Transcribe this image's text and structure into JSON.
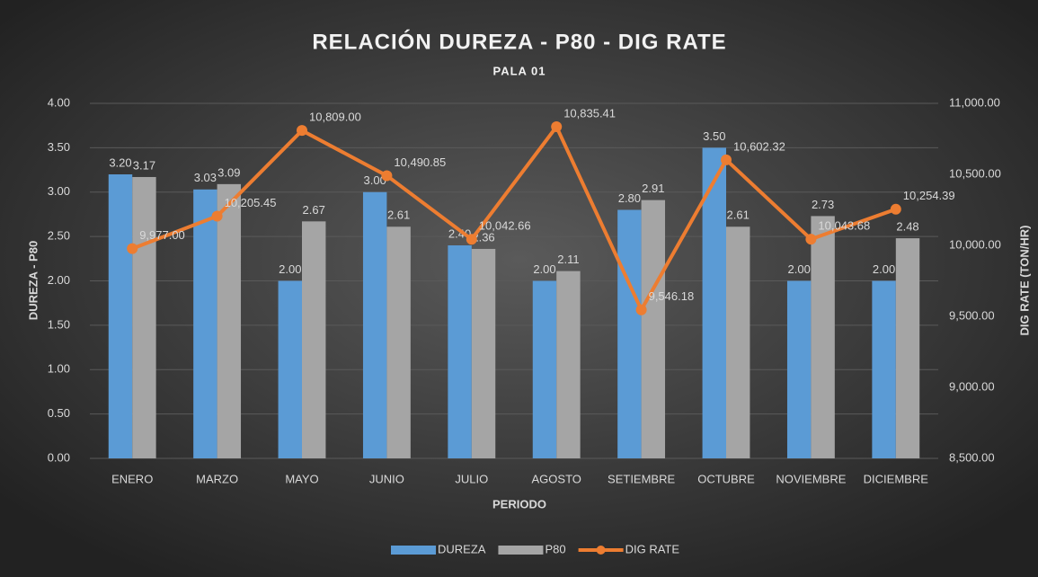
{
  "chart_data": {
    "type": "bar",
    "title": "RELACIÓN DUREZA - P80 - DIG RATE",
    "subtitle": "PALA 01",
    "x_label": "PERIODO",
    "y_label": "DUREZA - P80",
    "y2_label": "DIG RATE (TON/HR)",
    "categories": [
      "ENERO",
      "MARZO",
      "MAYO",
      "JUNIO",
      "JULIO",
      "AGOSTO",
      "SETIEMBRE",
      "OCTUBRE",
      "NOVIEMBRE",
      "DICIEMBRE"
    ],
    "series": [
      {
        "name": "DUREZA",
        "type": "bar",
        "color": "#5b9bd5",
        "values": [
          3.2,
          3.03,
          2.0,
          3.0,
          2.4,
          2.0,
          2.8,
          3.5,
          2.0,
          2.0
        ],
        "value_labels": [
          "3.20",
          "3.03",
          "2.00",
          "3.00",
          "2.40",
          "2.00",
          "2.80",
          "3.50",
          "2.00",
          "2.00"
        ]
      },
      {
        "name": "P80",
        "type": "bar",
        "color": "#a5a5a5",
        "values": [
          3.17,
          3.09,
          2.67,
          2.61,
          2.36,
          2.11,
          2.91,
          2.61,
          2.73,
          2.48
        ],
        "value_labels": [
          "3.17",
          "3.09",
          "2.67",
          "2.61",
          "2.36",
          "2.11",
          "2.91",
          "2.61",
          "2.73",
          "2.48"
        ]
      },
      {
        "name": "DIG RATE",
        "type": "line",
        "axis": "y2",
        "color": "#ed7d31",
        "values": [
          9977.0,
          10205.45,
          10809.0,
          10490.85,
          10042.66,
          10835.41,
          9546.18,
          10602.32,
          10043.68,
          10254.39
        ],
        "value_labels": [
          "9,977.00",
          "10,205.45",
          "10,809.00",
          "10,490.85",
          "10,042.66",
          "10,835.41",
          "9,546.18",
          "10,602.32",
          "10,043.68",
          "10,254.39"
        ]
      }
    ],
    "ylim": [
      0,
      4
    ],
    "yticks": [
      {
        "value": 0,
        "label": "0.00"
      },
      {
        "value": 0.5,
        "label": "0.50"
      },
      {
        "value": 1,
        "label": "1.00"
      },
      {
        "value": 1.5,
        "label": "1.50"
      },
      {
        "value": 2,
        "label": "2.00"
      },
      {
        "value": 2.5,
        "label": "2.50"
      },
      {
        "value": 3,
        "label": "3.00"
      },
      {
        "value": 3.5,
        "label": "3.50"
      },
      {
        "value": 4,
        "label": "4.00"
      }
    ],
    "y2lim": [
      8500,
      11000
    ],
    "y2ticks": [
      {
        "value": 8500,
        "label": "8,500.00"
      },
      {
        "value": 9000,
        "label": "9,000.00"
      },
      {
        "value": 9500,
        "label": "9,500.00"
      },
      {
        "value": 10000,
        "label": "10,000.00"
      },
      {
        "value": 10500,
        "label": "10,500.00"
      },
      {
        "value": 11000,
        "label": "11,000.00"
      }
    ],
    "grid": true,
    "legend": "bottom"
  }
}
